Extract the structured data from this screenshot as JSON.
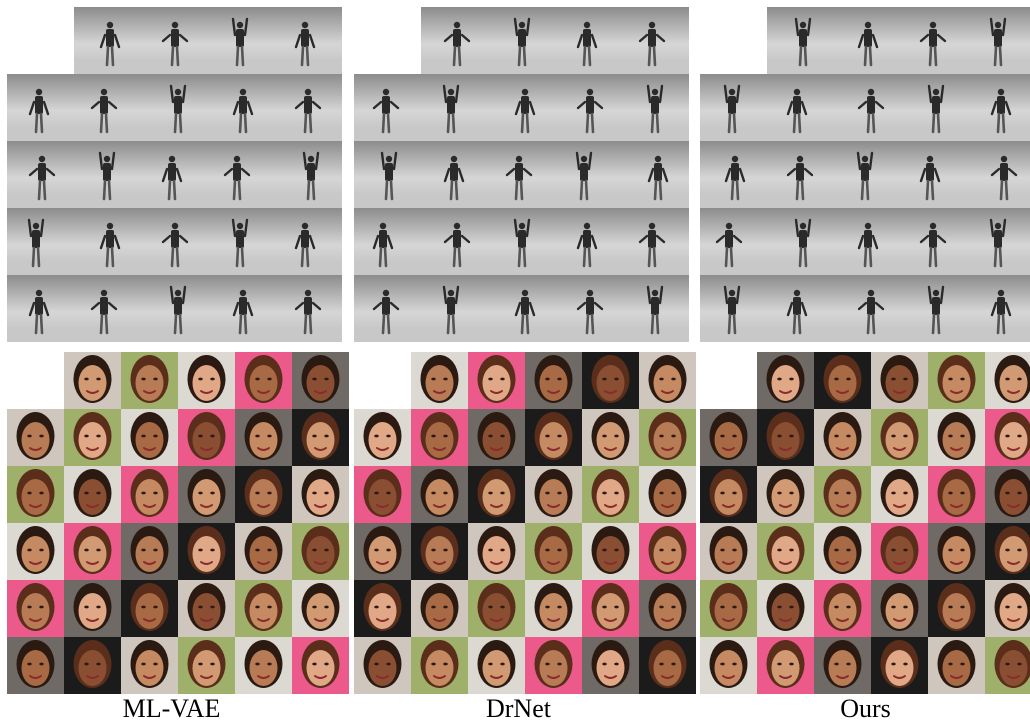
{
  "figure": {
    "methods": [
      {
        "id": "ml-vae",
        "caption": "ML-VAE"
      },
      {
        "id": "drnet",
        "caption": "DrNet"
      },
      {
        "id": "ours",
        "caption": "Ours"
      }
    ],
    "pose_colors": {
      "bg_top": "#8c8c8c",
      "bg_bottom": "#d6d6d6",
      "person": "#2a2a2a"
    },
    "face_tones": [
      "#c58a62",
      "#d19a73",
      "#b77b55",
      "#e0a886",
      "#a86a45",
      "#8a4f33"
    ],
    "face_backgrounds": [
      "#1b1b1b",
      "#cfc7bd",
      "#9fb06a",
      "#dcd8d2",
      "#ec5a8c",
      "#6f6a66"
    ]
  }
}
